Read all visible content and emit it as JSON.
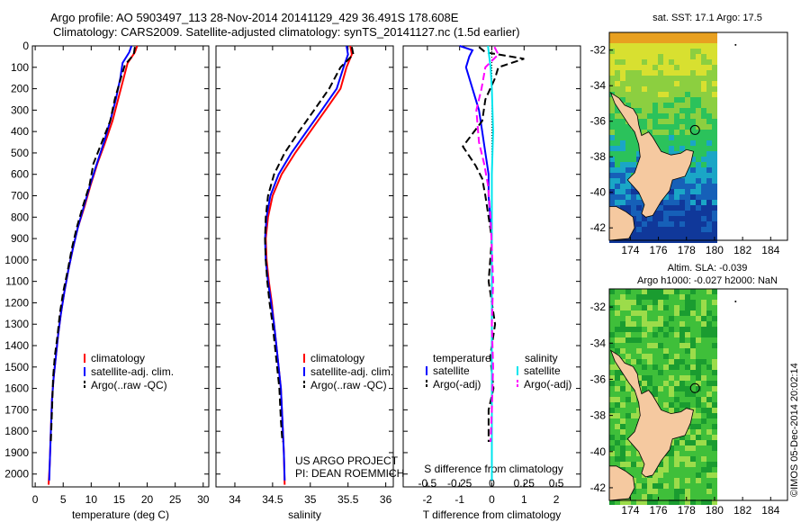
{
  "titles": {
    "line1": "Argo profile: AO 5903497_113 28-Nov-2014 20141129_429 36.491S 178.608E",
    "line2": "Climatology: CARS2009. Satellite-adjusted climatology: synTS_20141127.nc (1.5d earlier)"
  },
  "credit": "©IMOS 05-Dec-2014 20:02:14",
  "colors": {
    "clim": "#ff0000",
    "sat": "#0000ff",
    "argo": "#000000",
    "sat_sal": "#00e5ee",
    "argo_sal": "#ff00ff",
    "land": "#f5c9a0"
  },
  "chart_data": [
    {
      "type": "line",
      "title": "",
      "xlabel": "temperature (deg C)",
      "ylabel": "",
      "xlim": [
        -0.5,
        31
      ],
      "ylim": [
        0,
        2060
      ],
      "y_reversed": true,
      "xticks": [
        0,
        5,
        10,
        15,
        20,
        25,
        30
      ],
      "yticks": [
        0,
        100,
        200,
        300,
        400,
        500,
        600,
        700,
        800,
        900,
        1000,
        1100,
        1200,
        1300,
        1400,
        1500,
        1600,
        1700,
        1800,
        1900,
        2000
      ],
      "legend": [
        "climatology",
        "satellite-adj. clim.",
        "Argo(..raw -QC)"
      ],
      "series": [
        {
          "name": "climatology",
          "color": "red",
          "dash": "solid",
          "x": [
            18.2,
            17.8,
            16.5,
            15.8,
            14.8,
            13.8,
            12.5,
            11.1,
            9.9,
            8.8,
            7.6,
            6.7,
            5.9,
            5.2,
            4.6,
            4.1,
            3.7,
            3.3,
            3.0,
            2.8,
            2.6,
            2.4
          ],
          "y": [
            0,
            30,
            80,
            150,
            250,
            350,
            450,
            550,
            650,
            750,
            850,
            950,
            1050,
            1150,
            1250,
            1350,
            1450,
            1550,
            1650,
            1800,
            1950,
            2050
          ]
        },
        {
          "name": "satellite-adj. clim.",
          "color": "blue",
          "dash": "solid",
          "x": [
            17.2,
            16.8,
            15.6,
            15.2,
            14.4,
            13.4,
            12.3,
            11.0,
            9.8,
            8.7,
            7.6,
            6.7,
            5.9,
            5.2,
            4.6,
            4.1,
            3.7,
            3.3,
            3.0,
            2.8,
            2.6,
            2.5
          ],
          "y": [
            0,
            30,
            80,
            150,
            250,
            350,
            450,
            550,
            650,
            750,
            850,
            950,
            1050,
            1150,
            1250,
            1350,
            1450,
            1550,
            1650,
            1800,
            1950,
            2030
          ]
        },
        {
          "name": "Argo(..raw -QC)",
          "color": "black",
          "dash": "dashed",
          "x": [
            17.8,
            17.6,
            16.0,
            15.3,
            14.2,
            13.4,
            11.9,
            10.4,
            9.7,
            8.5,
            7.4,
            6.5,
            5.8,
            5.0,
            4.4,
            4.0,
            3.5,
            3.2,
            3.0,
            2.8
          ],
          "y": [
            5,
            40,
            90,
            150,
            250,
            350,
            450,
            550,
            650,
            750,
            850,
            950,
            1050,
            1150,
            1250,
            1350,
            1450,
            1550,
            1700,
            1850
          ]
        }
      ]
    },
    {
      "type": "line",
      "title": "",
      "xlabel": "salinity",
      "ylabel": "",
      "xlim": [
        33.75,
        36.1
      ],
      "ylim": [
        0,
        2060
      ],
      "y_reversed": true,
      "xticks": [
        34,
        34.5,
        35,
        35.5,
        36
      ],
      "legend": [
        "climatology",
        "satellite-adj. clim.",
        "Argo(..raw -QC)"
      ],
      "annotations": [
        "US ARGO PROJECT",
        "PI: DEAN ROEMMICH"
      ],
      "series": [
        {
          "name": "climatology",
          "color": "red",
          "dash": "solid",
          "x": [
            35.53,
            35.55,
            35.48,
            35.4,
            35.2,
            35.0,
            34.8,
            34.62,
            34.5,
            34.44,
            34.41,
            34.42,
            34.45,
            34.49,
            34.52,
            34.55,
            34.58,
            34.61,
            34.63,
            34.65,
            34.66
          ],
          "y": [
            0,
            40,
            100,
            200,
            300,
            400,
            500,
            600,
            700,
            800,
            900,
            1000,
            1100,
            1200,
            1300,
            1400,
            1500,
            1600,
            1750,
            1900,
            2050
          ]
        },
        {
          "name": "satellite-adj. clim.",
          "color": "blue",
          "dash": "solid",
          "x": [
            35.48,
            35.5,
            35.44,
            35.35,
            35.15,
            34.95,
            34.75,
            34.58,
            34.47,
            34.42,
            34.4,
            34.41,
            34.44,
            34.48,
            34.52,
            34.55,
            34.58,
            34.61,
            34.63,
            34.65,
            34.66
          ],
          "y": [
            0,
            40,
            100,
            200,
            300,
            400,
            500,
            600,
            700,
            800,
            900,
            1000,
            1100,
            1200,
            1300,
            1400,
            1500,
            1600,
            1750,
            1900,
            2030
          ]
        },
        {
          "name": "Argo(..raw -QC)",
          "color": "black",
          "dash": "dashed",
          "x": [
            35.55,
            35.57,
            35.4,
            35.25,
            35.05,
            34.85,
            34.66,
            34.52,
            34.44,
            34.41,
            34.4,
            34.41,
            34.43,
            34.46,
            34.5,
            34.53,
            34.56,
            34.59,
            34.61,
            34.63
          ],
          "y": [
            5,
            40,
            100,
            200,
            300,
            400,
            500,
            600,
            700,
            800,
            900,
            1000,
            1100,
            1200,
            1300,
            1400,
            1500,
            1600,
            1750,
            1850
          ]
        }
      ]
    },
    {
      "type": "line",
      "title": "",
      "xlabel": "T difference from climatology",
      "xlabel_top": "S difference from climatology",
      "ylabel": "",
      "xlim": [
        -2.75,
        2.75
      ],
      "ylim": [
        0,
        2060
      ],
      "y_reversed": true,
      "xticks": [
        -2,
        -1,
        0,
        1,
        2
      ],
      "s_ticks": [
        -0.5,
        -0.25,
        0,
        0.25,
        0.5
      ],
      "s_tick_labels": [
        "-0.5",
        "-0.25",
        "0",
        "0.25",
        "0.5"
      ],
      "legend_headers": [
        "temperature",
        "salinity"
      ],
      "legend": [
        "satellite",
        "Argo(-adj)",
        "satellite",
        "Argo(-adj)"
      ],
      "series": [
        {
          "name": "temperature satellite",
          "color": "blue",
          "dash": "solid",
          "x": [
            -1.0,
            -0.6,
            -0.7,
            -0.8,
            -0.6,
            -0.4,
            -0.3,
            -0.2,
            -0.1,
            -0.1,
            -0.05,
            0,
            0,
            0,
            0
          ],
          "y": [
            0,
            20,
            50,
            100,
            200,
            300,
            400,
            500,
            600,
            700,
            800,
            900,
            1200,
            1600,
            2030
          ]
        },
        {
          "name": "temperature Argo(-adj)",
          "color": "black",
          "dash": "dashed",
          "x": [
            -0.4,
            -0.2,
            1.0,
            0.2,
            0.1,
            -0.2,
            -0.3,
            -0.9,
            -0.5,
            -0.3,
            -0.2,
            -0.1,
            0,
            -0.1,
            0.1,
            -0.05,
            0.05,
            -0.1,
            -0.1
          ],
          "y": [
            5,
            30,
            60,
            100,
            150,
            250,
            350,
            470,
            560,
            620,
            700,
            800,
            900,
            1100,
            1300,
            1450,
            1600,
            1700,
            1850
          ]
        },
        {
          "name": "salinity satellite",
          "color": "cyan",
          "dash": "solid",
          "x": [
            -0.03,
            -0.02,
            -0.01,
            0,
            0.01,
            0,
            0,
            0,
            0,
            0
          ],
          "y": [
            0,
            50,
            100,
            200,
            400,
            600,
            900,
            1200,
            1600,
            2030
          ]
        },
        {
          "name": "salinity Argo(-adj)",
          "color": "magenta",
          "dash": "dashed",
          "x": [
            0.02,
            0.05,
            -0.05,
            -0.08,
            -0.12,
            -0.1,
            -0.06,
            -0.03,
            -0.01,
            0,
            0.01,
            0,
            0.01,
            0,
            -0.01
          ],
          "y": [
            5,
            40,
            100,
            200,
            300,
            450,
            550,
            650,
            800,
            950,
            1100,
            1300,
            1500,
            1700,
            1850
          ]
        }
      ]
    },
    {
      "type": "heatmap",
      "title": "sat. SST: 17.1 Argo: 17.5",
      "xlim": [
        172.5,
        185.2
      ],
      "ylim": [
        -42.7,
        -31.0
      ],
      "xticks": [
        174,
        176,
        178,
        180,
        182,
        184
      ],
      "yticks": [
        -32,
        -34,
        -36,
        -38,
        -40,
        -42
      ],
      "data_extent_lon": [
        172.5,
        180
      ],
      "argo_position": {
        "lat": -36.491,
        "lon": 178.608
      }
    },
    {
      "type": "heatmap",
      "title": "Altim. SLA: -0.039",
      "subtitle": "Argo h1000: -0.027 h2000: NaN",
      "xlim": [
        172.5,
        185.2
      ],
      "ylim": [
        -42.7,
        -31.0
      ],
      "xticks": [
        174,
        176,
        178,
        180,
        182,
        184
      ],
      "yticks": [
        -32,
        -34,
        -36,
        -38,
        -40,
        -42
      ],
      "data_extent_lon": [
        172.5,
        180
      ],
      "argo_position": {
        "lat": -36.491,
        "lon": 178.608
      }
    }
  ]
}
